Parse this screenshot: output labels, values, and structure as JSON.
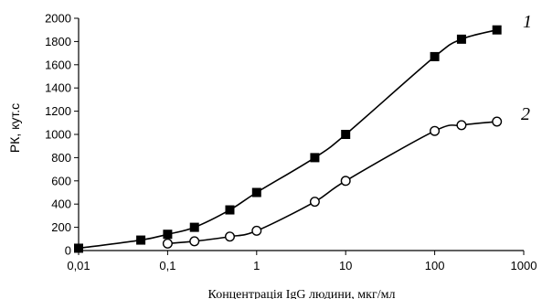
{
  "chart_data": {
    "type": "line",
    "xscale": "log",
    "xlim": [
      0.01,
      1000
    ],
    "ylim": [
      0,
      2000
    ],
    "grid": false,
    "xlabel": "Концентрація IgG людини, мкг/мл",
    "ylabel": "РК, кут.с",
    "x_tick_labels": [
      "0,01",
      "0,1",
      "1",
      "10",
      "100",
      "1000"
    ],
    "x_ticks": [
      0.01,
      0.1,
      1,
      10,
      100,
      1000
    ],
    "y_tick_labels": [
      "0",
      "200",
      "400",
      "600",
      "800",
      "1000",
      "1200",
      "1400",
      "1600",
      "1800",
      "2000"
    ],
    "y_ticks": [
      0,
      200,
      400,
      600,
      800,
      1000,
      1200,
      1400,
      1600,
      1800,
      2000
    ],
    "series": [
      {
        "name": "1",
        "marker": "filled-square",
        "color": "#000000",
        "x": [
          0.01,
          0.05,
          0.1,
          0.2,
          0.5,
          1,
          4.5,
          10,
          100,
          200,
          500
        ],
        "y": [
          20,
          90,
          140,
          200,
          350,
          500,
          800,
          1000,
          1670,
          1820,
          1900
        ]
      },
      {
        "name": "2",
        "marker": "open-circle",
        "color": "#000000",
        "x": [
          0.1,
          0.2,
          0.5,
          1,
          4.5,
          10,
          100,
          200,
          500
        ],
        "y": [
          60,
          80,
          120,
          170,
          420,
          600,
          1030,
          1080,
          1110
        ]
      }
    ]
  }
}
